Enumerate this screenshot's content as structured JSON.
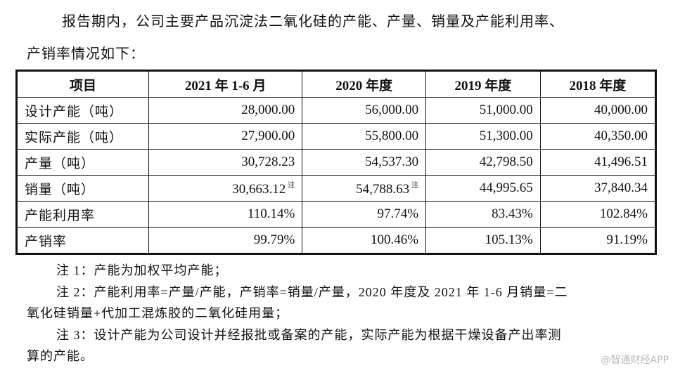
{
  "intro": {
    "line1": "报告期内，公司主要产品沉淀法二氧化硅的产能、产量、销量及产能利用率、",
    "line2": "产销率情况如下："
  },
  "table": {
    "headers": [
      "项目",
      "2021 年 1-6 月",
      "2020 年度",
      "2019 年度",
      "2018 年度"
    ],
    "rows": [
      {
        "label": "设计产能（吨）",
        "values": [
          "28,000.00",
          "56,000.00",
          "51,000.00",
          "40,000.00"
        ],
        "notes": [
          "",
          "",
          "",
          ""
        ]
      },
      {
        "label": "实际产能（吨）",
        "values": [
          "27,900.00",
          "55,800.00",
          "51,300.00",
          "40,350.00"
        ],
        "notes": [
          "",
          "",
          "",
          ""
        ]
      },
      {
        "label": "产量（吨）",
        "values": [
          "30,728.23",
          "54,537.30",
          "42,798.50",
          "41,496.51"
        ],
        "notes": [
          "",
          "",
          "",
          ""
        ]
      },
      {
        "label": "销量（吨）",
        "values": [
          "30,663.12",
          "54,788.63",
          "44,995.65",
          "37,840.34"
        ],
        "notes": [
          "注",
          "注",
          "",
          ""
        ]
      },
      {
        "label": "产能利用率",
        "values": [
          "110.14%",
          "97.74%",
          "83.43%",
          "102.84%"
        ],
        "notes": [
          "",
          "",
          "",
          ""
        ]
      },
      {
        "label": "产销率",
        "values": [
          "99.79%",
          "100.46%",
          "105.13%",
          "91.19%"
        ],
        "notes": [
          "",
          "",
          "",
          ""
        ]
      }
    ]
  },
  "notes": {
    "n1": "注 1：产能为加权平均产能；",
    "n2a": "注 2：产能利用率=产量/产能，产销率=销量/产量，2020 年度及 2021 年 1-6 月销量=二",
    "n2b": "氧化硅销量+代加工混炼胶的二氧化硅用量；",
    "n3a": "注 3：设计产能为公司设计并经报批或备案的产能，实际产能为根据干燥设备产出率测",
    "n3b": "算的产能。"
  },
  "watermark": "@智通财经APP"
}
